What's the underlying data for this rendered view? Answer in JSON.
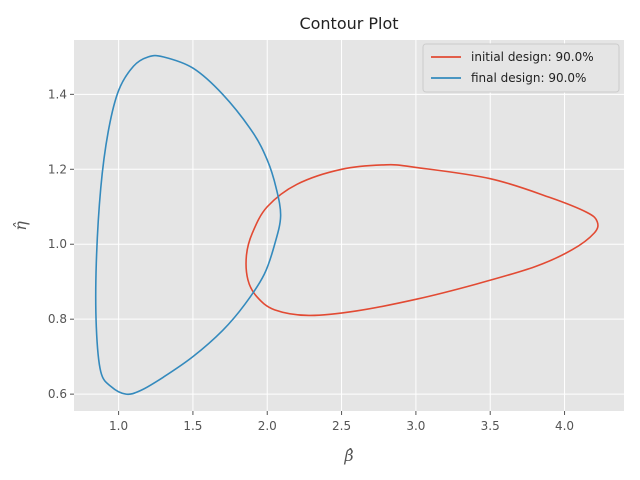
{
  "chart_data": {
    "type": "line",
    "title": "Contour Plot",
    "xlabel": "β̂",
    "ylabel": "η̂",
    "xlim": [
      0.7,
      4.4
    ],
    "ylim": [
      0.555,
      1.545
    ],
    "xticks": [
      1.0,
      1.5,
      2.0,
      2.5,
      3.0,
      3.5,
      4.0
    ],
    "xtick_labels": [
      "1.0",
      "1.5",
      "2.0",
      "2.5",
      "3.0",
      "3.5",
      "4.0"
    ],
    "yticks": [
      0.6,
      0.8,
      1.0,
      1.2,
      1.4
    ],
    "ytick_labels": [
      "0.6",
      "0.8",
      "1.0",
      "1.2",
      "1.4"
    ],
    "grid": true,
    "legend_position": "top-right",
    "series": [
      {
        "name": "initial design: 90.0%",
        "color": "#E24A33",
        "points": [
          [
            1.87,
            0.905
          ],
          [
            1.93,
            0.86
          ],
          [
            2.05,
            0.825
          ],
          [
            2.28,
            0.81
          ],
          [
            2.6,
            0.822
          ],
          [
            3.0,
            0.853
          ],
          [
            3.4,
            0.893
          ],
          [
            3.8,
            0.94
          ],
          [
            4.05,
            0.985
          ],
          [
            4.2,
            1.03
          ],
          [
            4.22,
            1.06
          ],
          [
            4.15,
            1.085
          ],
          [
            3.9,
            1.125
          ],
          [
            3.5,
            1.175
          ],
          [
            3.0,
            1.205
          ],
          [
            2.8,
            1.212
          ],
          [
            2.5,
            1.2
          ],
          [
            2.2,
            1.16
          ],
          [
            2.0,
            1.1
          ],
          [
            1.9,
            1.03
          ],
          [
            1.86,
            0.97
          ],
          [
            1.87,
            0.905
          ]
        ]
      },
      {
        "name": "final design: 90.0%",
        "color": "#348ABD",
        "points": [
          [
            1.05,
            0.6
          ],
          [
            0.95,
            0.62
          ],
          [
            0.88,
            0.66
          ],
          [
            0.85,
            0.78
          ],
          [
            0.85,
            0.95
          ],
          [
            0.88,
            1.15
          ],
          [
            0.93,
            1.3
          ],
          [
            1.0,
            1.41
          ],
          [
            1.1,
            1.475
          ],
          [
            1.2,
            1.5
          ],
          [
            1.3,
            1.5
          ],
          [
            1.5,
            1.47
          ],
          [
            1.7,
            1.4
          ],
          [
            1.9,
            1.3
          ],
          [
            2.0,
            1.225
          ],
          [
            2.06,
            1.15
          ],
          [
            2.09,
            1.075
          ],
          [
            2.05,
            1.0
          ],
          [
            1.98,
            0.92
          ],
          [
            1.85,
            0.84
          ],
          [
            1.7,
            0.77
          ],
          [
            1.5,
            0.7
          ],
          [
            1.3,
            0.645
          ],
          [
            1.15,
            0.61
          ],
          [
            1.05,
            0.6
          ]
        ]
      }
    ]
  }
}
